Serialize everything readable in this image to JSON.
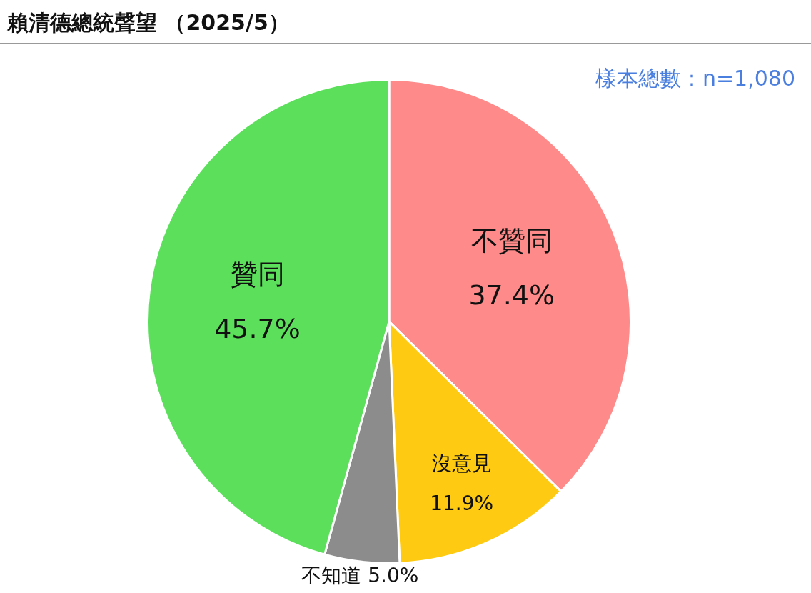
{
  "chart_data": {
    "type": "pie",
    "title": "賴清德總統聲望 （2025/5）",
    "categories": [
      "不贊同",
      "沒意見",
      "不知道",
      "贊同"
    ],
    "values": [
      37.4,
      11.9,
      5.0,
      45.7
    ],
    "colors": [
      "#fe8a8a",
      "#fecb12",
      "#8c8c8c",
      "#5ce05c"
    ],
    "value_labels": [
      "37.4%",
      "11.9%",
      "5.0%",
      "45.7%"
    ],
    "annotations": [
      "樣本總數：n=1,080"
    ],
    "legend": false
  }
}
